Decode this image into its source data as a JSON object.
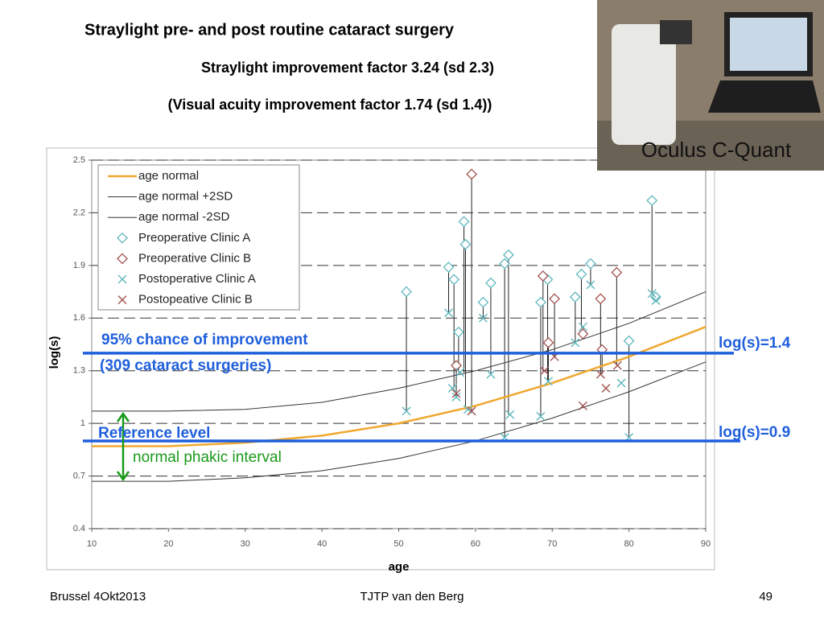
{
  "slide": {
    "title": "Straylight pre- and post routine cataract surgery",
    "subtitle": "Straylight improvement factor 3.24 (sd 2.3)",
    "subtitle2": "(Visual acuity improvement factor 1.74 (sd 1.4))",
    "photo_caption": "Oculus C-Quant",
    "footer_left": "Brussel 4Okt2013",
    "footer_center": "TJTP van den Berg",
    "page_number": "49"
  },
  "chart_data": {
    "type": "scatter",
    "xlabel": "age",
    "ylabel": "log(s)",
    "xlim": [
      10,
      90
    ],
    "xticks": [
      10,
      20,
      30,
      40,
      50,
      60,
      70,
      80,
      90
    ],
    "ylim": [
      0.4,
      2.5
    ],
    "yticks": [
      0.4,
      0.7,
      1,
      1.3,
      1.6,
      1.9,
      2.2,
      2.5
    ],
    "grid": "dashed",
    "series": [
      {
        "name": "age normal",
        "color": "#f0a830",
        "marker": "line",
        "x": [
          10,
          20,
          30,
          40,
          50,
          60,
          70,
          80,
          90
        ],
        "values": [
          0.87,
          0.87,
          0.89,
          0.93,
          1.0,
          1.1,
          1.23,
          1.38,
          1.55
        ]
      },
      {
        "name": "age normal +2SD",
        "color": "#333333",
        "marker": "line",
        "x": [
          10,
          20,
          30,
          40,
          50,
          60,
          70,
          80,
          90
        ],
        "values": [
          1.07,
          1.07,
          1.08,
          1.12,
          1.2,
          1.3,
          1.42,
          1.57,
          1.75
        ]
      },
      {
        "name": "age normal -2SD",
        "color": "#333333",
        "marker": "line",
        "x": [
          10,
          20,
          30,
          40,
          50,
          60,
          70,
          80,
          90
        ],
        "values": [
          0.67,
          0.67,
          0.69,
          0.73,
          0.8,
          0.9,
          1.03,
          1.18,
          1.35
        ]
      },
      {
        "name": "Preoperative Clinic A",
        "color": "#5fb7bd",
        "marker": "diamond",
        "x": [
          51,
          56.5,
          57.2,
          57.8,
          58.5,
          58.7,
          61,
          62,
          63.8,
          64.3,
          68.5,
          69.4,
          73,
          73.8,
          75,
          80,
          83,
          83.5
        ],
        "values": [
          1.75,
          1.89,
          1.82,
          1.52,
          2.15,
          2.02,
          1.69,
          1.8,
          1.91,
          1.96,
          1.69,
          1.82,
          1.72,
          1.85,
          1.91,
          1.47,
          2.27,
          1.72
        ]
      },
      {
        "name": "Preoperative Clinic B",
        "color": "#a0524f",
        "marker": "diamond",
        "x": [
          57.5,
          59.5,
          68.8,
          69.5,
          70.3,
          74,
          76.3,
          76.5,
          78.4
        ],
        "values": [
          1.33,
          2.42,
          1.84,
          1.46,
          1.71,
          1.51,
          1.71,
          1.42,
          1.86
        ]
      },
      {
        "name": "Postoperative Clinic A",
        "color": "#5fb7bd",
        "marker": "x",
        "x": [
          51,
          56.5,
          57,
          57.5,
          58,
          59,
          61,
          62,
          63.8,
          64.5,
          68.5,
          69.5,
          73,
          74,
          75,
          79,
          80,
          83,
          83.5
        ],
        "values": [
          1.07,
          1.63,
          1.2,
          1.15,
          1.29,
          1.08,
          1.6,
          1.28,
          0.92,
          1.05,
          1.04,
          1.24,
          1.46,
          1.55,
          1.79,
          1.23,
          0.92,
          1.74,
          1.7
        ]
      },
      {
        "name": "Postopeative Clinic B",
        "color": "#a0524f",
        "marker": "x",
        "x": [
          57.5,
          59.5,
          69,
          70.3,
          74,
          76.3,
          77,
          78.5
        ],
        "values": [
          1.17,
          1.07,
          1.3,
          1.38,
          1.1,
          1.28,
          1.2,
          1.33
        ]
      }
    ],
    "reference_lines": [
      {
        "text": "log(s)=1.4",
        "y": 1.4,
        "color": "#1f5fdc"
      },
      {
        "text": "log(s)=0.9",
        "y": 0.9,
        "color": "#1f5fdc"
      }
    ],
    "notes": [
      "95% chance of improvement",
      "(309 cataract surgeries)",
      "Reference level",
      "normal phakic interval"
    ]
  }
}
